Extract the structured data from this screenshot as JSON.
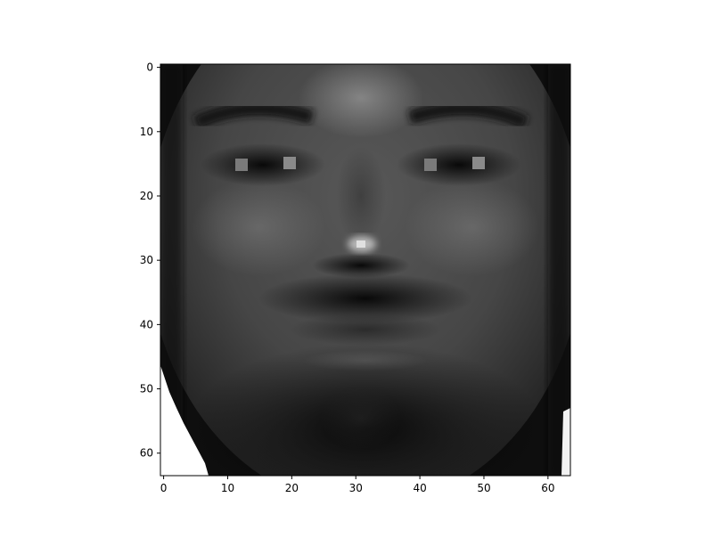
{
  "image": {
    "subject": "grayscale-face",
    "rows": 64,
    "cols": 64,
    "colormap": "gray",
    "background_color": "#000000",
    "frame_color": "#000000",
    "highlight_color": "#ffffff"
  },
  "axes": {
    "xlim": [
      -0.5,
      63.5
    ],
    "ylim": [
      63.5,
      -0.5
    ],
    "xticks": [
      0,
      10,
      20,
      30,
      40,
      50,
      60
    ],
    "yticks": [
      0,
      10,
      20,
      30,
      40,
      50,
      60
    ],
    "xtick_labels": [
      "0",
      "10",
      "20",
      "30",
      "40",
      "50",
      "60"
    ],
    "ytick_labels": [
      "0",
      "10",
      "20",
      "30",
      "40",
      "50",
      "60"
    ]
  }
}
